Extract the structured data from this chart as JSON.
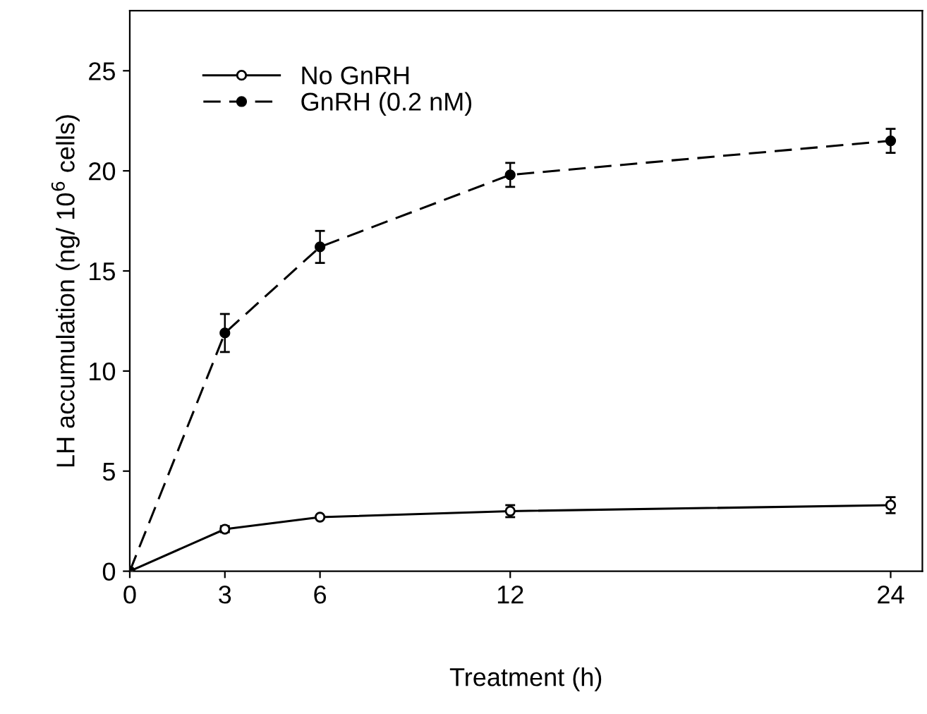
{
  "chart_data": {
    "type": "line",
    "xlabel": "Treatment (h)",
    "ylabel": "LH accumulation (ng/ 10$^{6}$ cells)",
    "x": [
      0,
      3,
      6,
      12,
      24
    ],
    "xlim": [
      0,
      25
    ],
    "xticks": [
      0,
      3,
      6,
      12,
      24
    ],
    "ylim": [
      0,
      28
    ],
    "yticks": [
      0,
      5,
      10,
      15,
      20,
      25
    ],
    "grid": false,
    "legend": "top left",
    "marker": "circle",
    "series": [
      {
        "name": "No GnRH",
        "color": "#000000",
        "line_style": "solid",
        "values": [
          0,
          2.1,
          2.7,
          3.0,
          3.3
        ],
        "errors": [
          null,
          0.15,
          null,
          0.3,
          0.4
        ]
      },
      {
        "name": "GnRH (0.2 nM)",
        "color": "#000000",
        "line_style": "dashed",
        "values": [
          0,
          11.9,
          16.2,
          19.8,
          21.5
        ],
        "errors": [
          null,
          0.95,
          0.8,
          0.6,
          0.6
        ]
      }
    ]
  }
}
